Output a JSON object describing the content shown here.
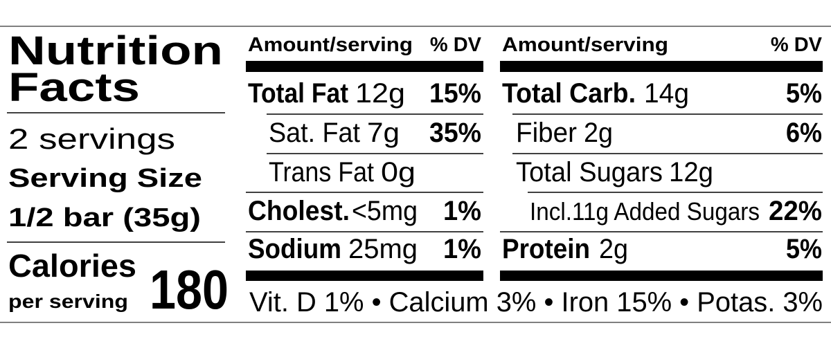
{
  "title_line1": "Nutrition",
  "title_line2": "Facts",
  "servings": "2 servings",
  "serving_size_label": "Serving Size",
  "serving_size": "1/2 bar (35g)",
  "calories_label": "Calories",
  "calories_sub": "per serving",
  "calories": 180,
  "columns": [
    {
      "amount_header": "Amount/serving",
      "dv_header": "% DV",
      "rows": [
        {
          "label": "Total Fat",
          "amount": "12g",
          "dv": "15%"
        },
        {
          "label": "Sat. Fat",
          "amount": "7g",
          "dv": "35%"
        },
        {
          "label": "Trans Fat",
          "amount": "0g"
        },
        {
          "label": "Cholest.",
          "amount": "<5mg",
          "dv": "1%"
        },
        {
          "label": "Sodium",
          "amount": "25mg",
          "dv": "1%"
        }
      ]
    },
    {
      "amount_header": "Amount/serving",
      "dv_header": "% DV",
      "rows": [
        {
          "label": "Total Carb.",
          "amount": "14g",
          "dv": "5%"
        },
        {
          "label": "Fiber",
          "amount": "2g",
          "dv": "6%"
        },
        {
          "label": "Total Sugars",
          "amount": "12g"
        },
        {
          "label": "Incl.11g Added Sugars",
          "dv": "22%"
        },
        {
          "label": "Protein",
          "amount": "2g",
          "dv": "5%"
        }
      ]
    }
  ],
  "footer": "Vit. D 1% • Calcium 3% • Iron 15% • Potas. 3%"
}
